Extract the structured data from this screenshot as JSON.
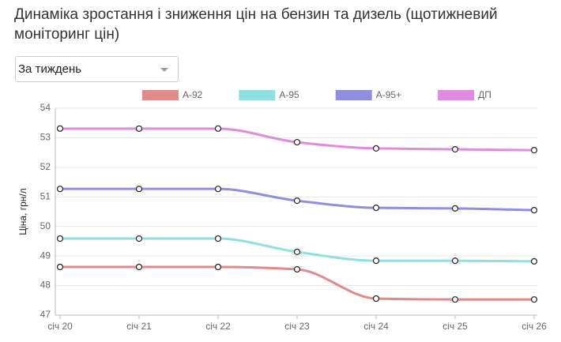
{
  "chart_data": {
    "type": "line",
    "title": "Динаміка зростання і зниження цін на бензин та дизель (щотижневий моніторинг цін)",
    "period_select": "За тиждень",
    "y_label": "Ціна, грн/л",
    "categories": [
      "січ 20",
      "січ 21",
      "січ 22",
      "січ 23",
      "січ 24",
      "січ 25",
      "січ 26"
    ],
    "series": [
      {
        "name": "А-92",
        "color": "#e08a8a",
        "values": [
          48.63,
          48.63,
          48.63,
          48.55,
          47.56,
          47.53,
          47.53
        ]
      },
      {
        "name": "А-95",
        "color": "#8ddfe0",
        "values": [
          49.59,
          49.59,
          49.59,
          49.14,
          48.84,
          48.84,
          48.82
        ]
      },
      {
        "name": "А-95+",
        "color": "#8f8ee0",
        "values": [
          51.27,
          51.27,
          51.27,
          50.87,
          50.63,
          50.61,
          50.55
        ]
      },
      {
        "name": "ДП",
        "color": "#e08ae0",
        "values": [
          53.31,
          53.31,
          53.31,
          52.85,
          52.64,
          52.61,
          52.58
        ]
      }
    ],
    "ylim": [
      47,
      54
    ],
    "yticks": [
      47,
      48,
      49,
      50,
      51,
      52,
      53,
      54
    ],
    "grid": true
  }
}
